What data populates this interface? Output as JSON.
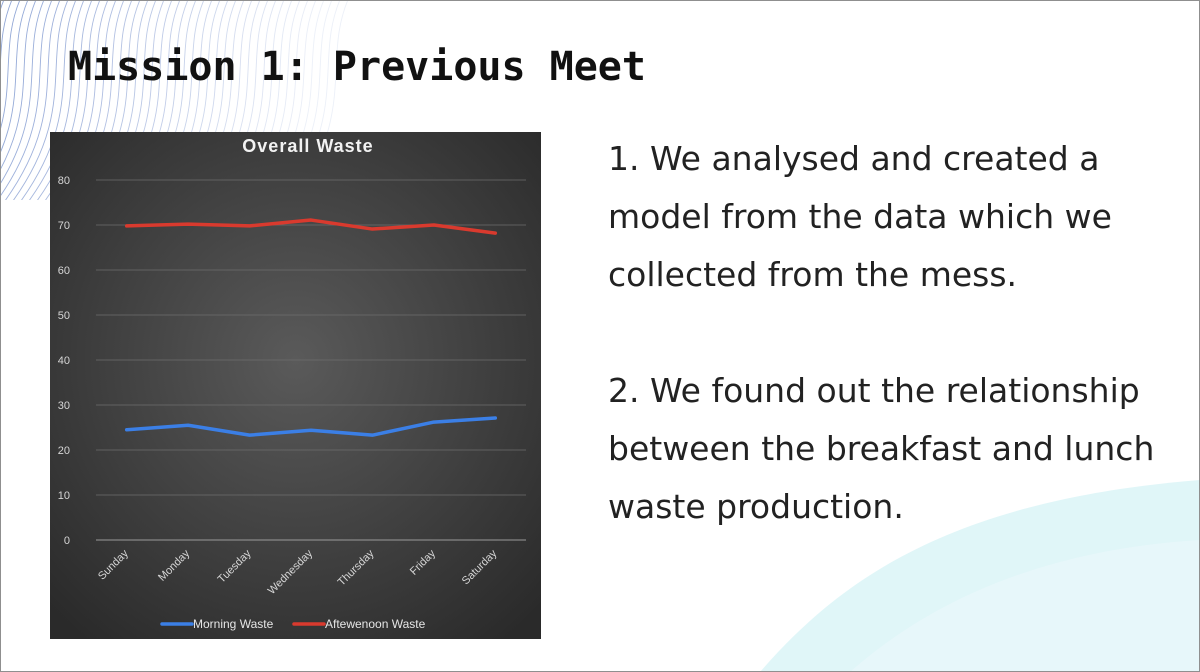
{
  "slide": {
    "title": "Mission 1: Previous Meet",
    "points": [
      "1. We analysed and created a model from the data which we collected from the mess.",
      "2. We found out the relationship between the breakfast and lunch waste production."
    ]
  },
  "colors": {
    "chart_bg_center": "#5a5a5a",
    "chart_bg_edge": "#2a2a2a",
    "morning": "#3b7fe6",
    "afternoon": "#d93a2e",
    "gridline": "#6e6e6e",
    "deco_lines": "#7e97cf",
    "deco_wave": "#d6f3f6"
  },
  "chart_data": {
    "type": "line",
    "title": "Overall Waste",
    "xlabel": "",
    "ylabel": "",
    "categories": [
      "Sunday",
      "Monday",
      "Tuesday",
      "Wednesday",
      "Thursday",
      "Friday",
      "Saturday"
    ],
    "ylim": [
      0,
      80
    ],
    "yticks": [
      0,
      10,
      20,
      30,
      40,
      50,
      60,
      70,
      80
    ],
    "grid": true,
    "legend": "bottom",
    "series": [
      {
        "name": "Morning Waste",
        "values": [
          24.5,
          25.5,
          23.3,
          24.4,
          23.3,
          26.2,
          27.1
        ]
      },
      {
        "name": "Aftewenoon Waste",
        "values": [
          69.8,
          70.2,
          69.8,
          71.1,
          69.1,
          70.0,
          68.2
        ]
      }
    ]
  }
}
